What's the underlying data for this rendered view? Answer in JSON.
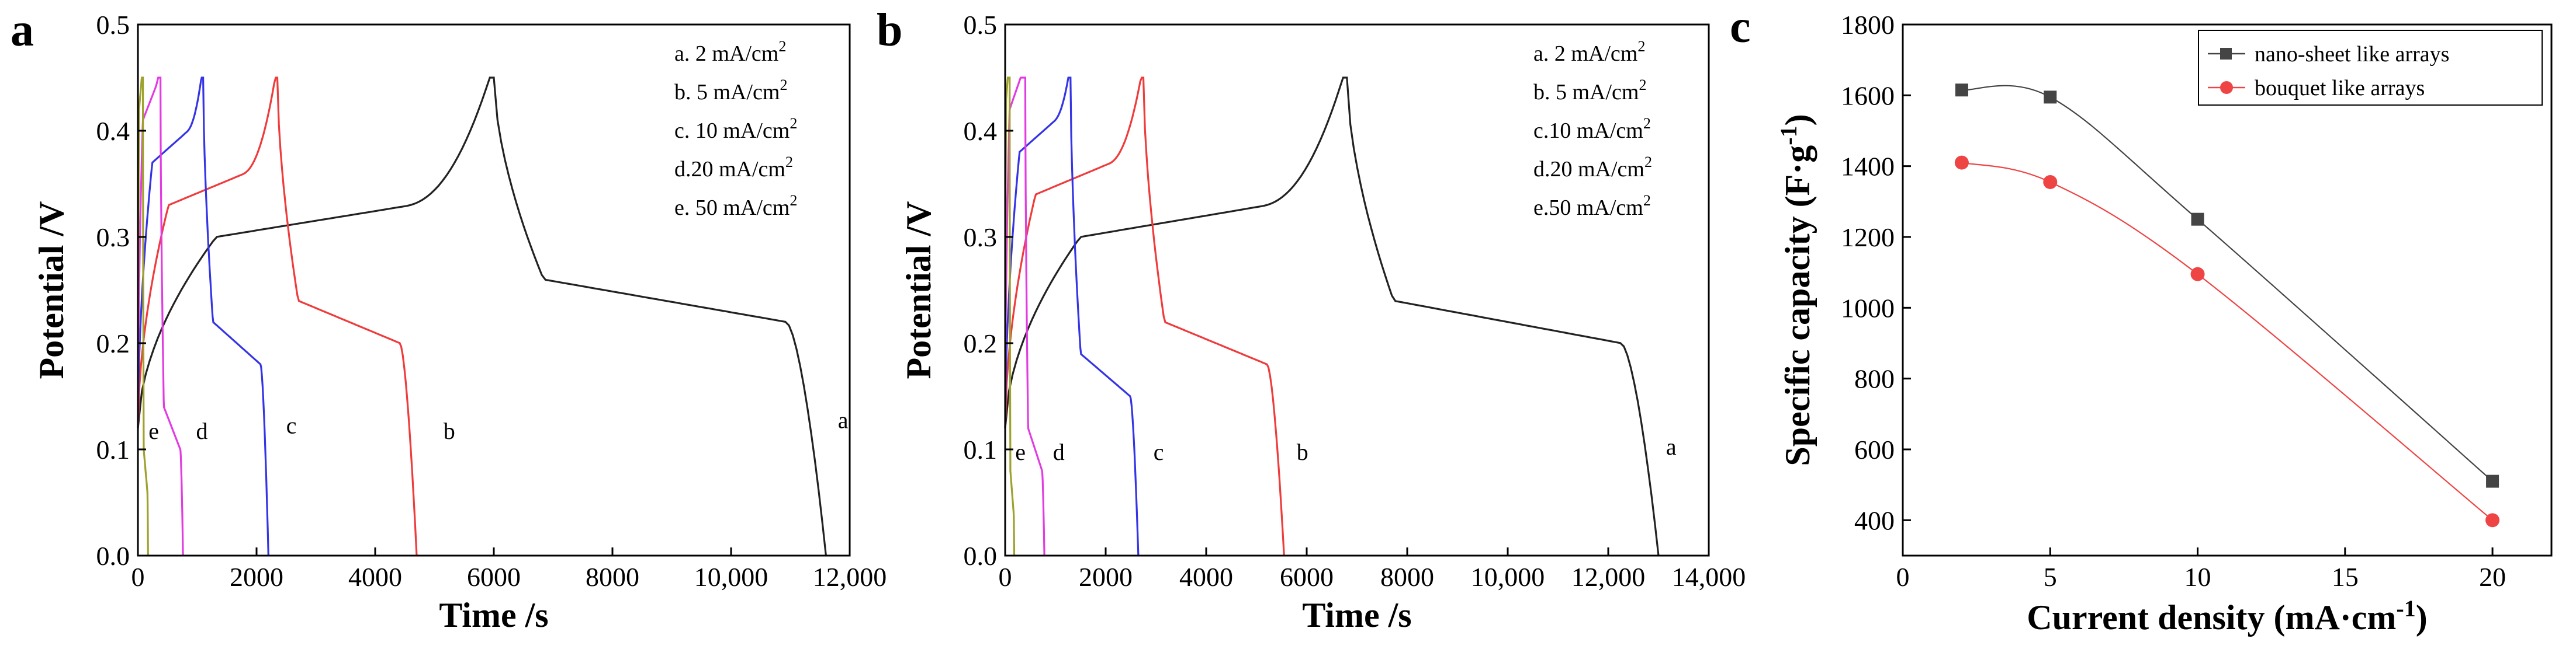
{
  "chart_data": [
    {
      "panel": "a",
      "type": "line",
      "xlabel": "Time /s",
      "ylabel": "Potential /V",
      "xlim": [
        0,
        12000
      ],
      "ylim": [
        0,
        0.5
      ],
      "xticks": [
        "0",
        "2000",
        "4000",
        "6000",
        "8000",
        "10,000",
        "12,000"
      ],
      "yticks": [
        "0.0",
        "0.1",
        "0.2",
        "0.3",
        "0.4",
        "0.5"
      ],
      "legend": [
        "a. 2 mA/cm",
        "b. 5 mA/cm",
        "c. 10 mA/cm",
        "d.20 mA/cm",
        "e. 50 mA/cm"
      ],
      "legend_superscript": "2",
      "curve_labels": [
        "e",
        "d",
        "c",
        "b",
        "a"
      ],
      "series": [
        {
          "name": "a",
          "color": "#222222",
          "charge_time": 6000,
          "discharge_time": 11600,
          "plateau_charge": 0.3,
          "plateau_discharge": 0.24
        },
        {
          "name": "b",
          "color": "#ef3b3b",
          "charge_time": 2350,
          "discharge_time": 4700,
          "plateau_charge": 0.33,
          "plateau_discharge": 0.22
        },
        {
          "name": "c",
          "color": "#3434e6",
          "charge_time": 1100,
          "discharge_time": 2200,
          "plateau_charge": 0.37,
          "plateau_discharge": 0.2
        },
        {
          "name": "d",
          "color": "#e23be2",
          "charge_time": 380,
          "discharge_time": 760,
          "plateau_charge": 0.41,
          "plateau_discharge": 0.12
        },
        {
          "name": "e",
          "color": "#9ea12c",
          "charge_time": 85,
          "discharge_time": 170,
          "plateau_charge": 0.42,
          "plateau_discharge": 0.08
        }
      ]
    },
    {
      "panel": "b",
      "type": "line",
      "xlabel": "Time /s",
      "ylabel": "Potential /V",
      "xlim": [
        0,
        14000
      ],
      "ylim": [
        0,
        0.5
      ],
      "xticks": [
        "0",
        "2000",
        "4000",
        "6000",
        "8000",
        "10,000",
        "12,000",
        "14,000"
      ],
      "yticks": [
        "0.0",
        "0.1",
        "0.2",
        "0.3",
        "0.4",
        "0.5"
      ],
      "legend": [
        "a. 2 mA/cm",
        "b. 5 mA/cm",
        "c.10 mA/cm",
        "d.20 mA/cm",
        "e.50 mA/cm"
      ],
      "legend_superscript": "2",
      "curve_labels": [
        "e",
        "d",
        "c",
        "b",
        "a"
      ],
      "series": [
        {
          "name": "a",
          "color": "#222222",
          "charge_time": 6800,
          "discharge_time": 13000,
          "plateau_charge": 0.3,
          "plateau_discharge": 0.22
        },
        {
          "name": "b",
          "color": "#ef3b3b",
          "charge_time": 2750,
          "discharge_time": 5550,
          "plateau_charge": 0.34,
          "plateau_discharge": 0.2
        },
        {
          "name": "c",
          "color": "#3434e6",
          "charge_time": 1300,
          "discharge_time": 2650,
          "plateau_charge": 0.38,
          "plateau_discharge": 0.17
        },
        {
          "name": "d",
          "color": "#e23be2",
          "charge_time": 400,
          "discharge_time": 780,
          "plateau_charge": 0.42,
          "plateau_discharge": 0.1
        },
        {
          "name": "e",
          "color": "#9ea12c",
          "charge_time": 90,
          "discharge_time": 180,
          "plateau_charge": 0.43,
          "plateau_discharge": 0.06
        }
      ]
    },
    {
      "panel": "c",
      "type": "line",
      "xlabel": "Current density (mA·cm",
      "xlabel_superscript": "-1",
      "xlabel_close": ")",
      "ylabel": "Specific capacity (F·g",
      "ylabel_superscript": "-1",
      "ylabel_close": ")",
      "xlim": [
        0,
        22
      ],
      "ylim": [
        300,
        1800
      ],
      "xticks": [
        "0",
        "5",
        "10",
        "15",
        "20"
      ],
      "yticks": [
        "400",
        "600",
        "800",
        "1000",
        "1200",
        "1400",
        "1600",
        "1800"
      ],
      "x": [
        2,
        5,
        10,
        20
      ],
      "series": [
        {
          "name": "nano-sheet like arrays",
          "color": "#444444",
          "marker": "square",
          "values": [
            1615,
            1595,
            1250,
            510
          ]
        },
        {
          "name": "bouquet like arrays",
          "color": "#ee4444",
          "marker": "circle",
          "values": [
            1410,
            1355,
            1095,
            400
          ]
        }
      ]
    }
  ]
}
